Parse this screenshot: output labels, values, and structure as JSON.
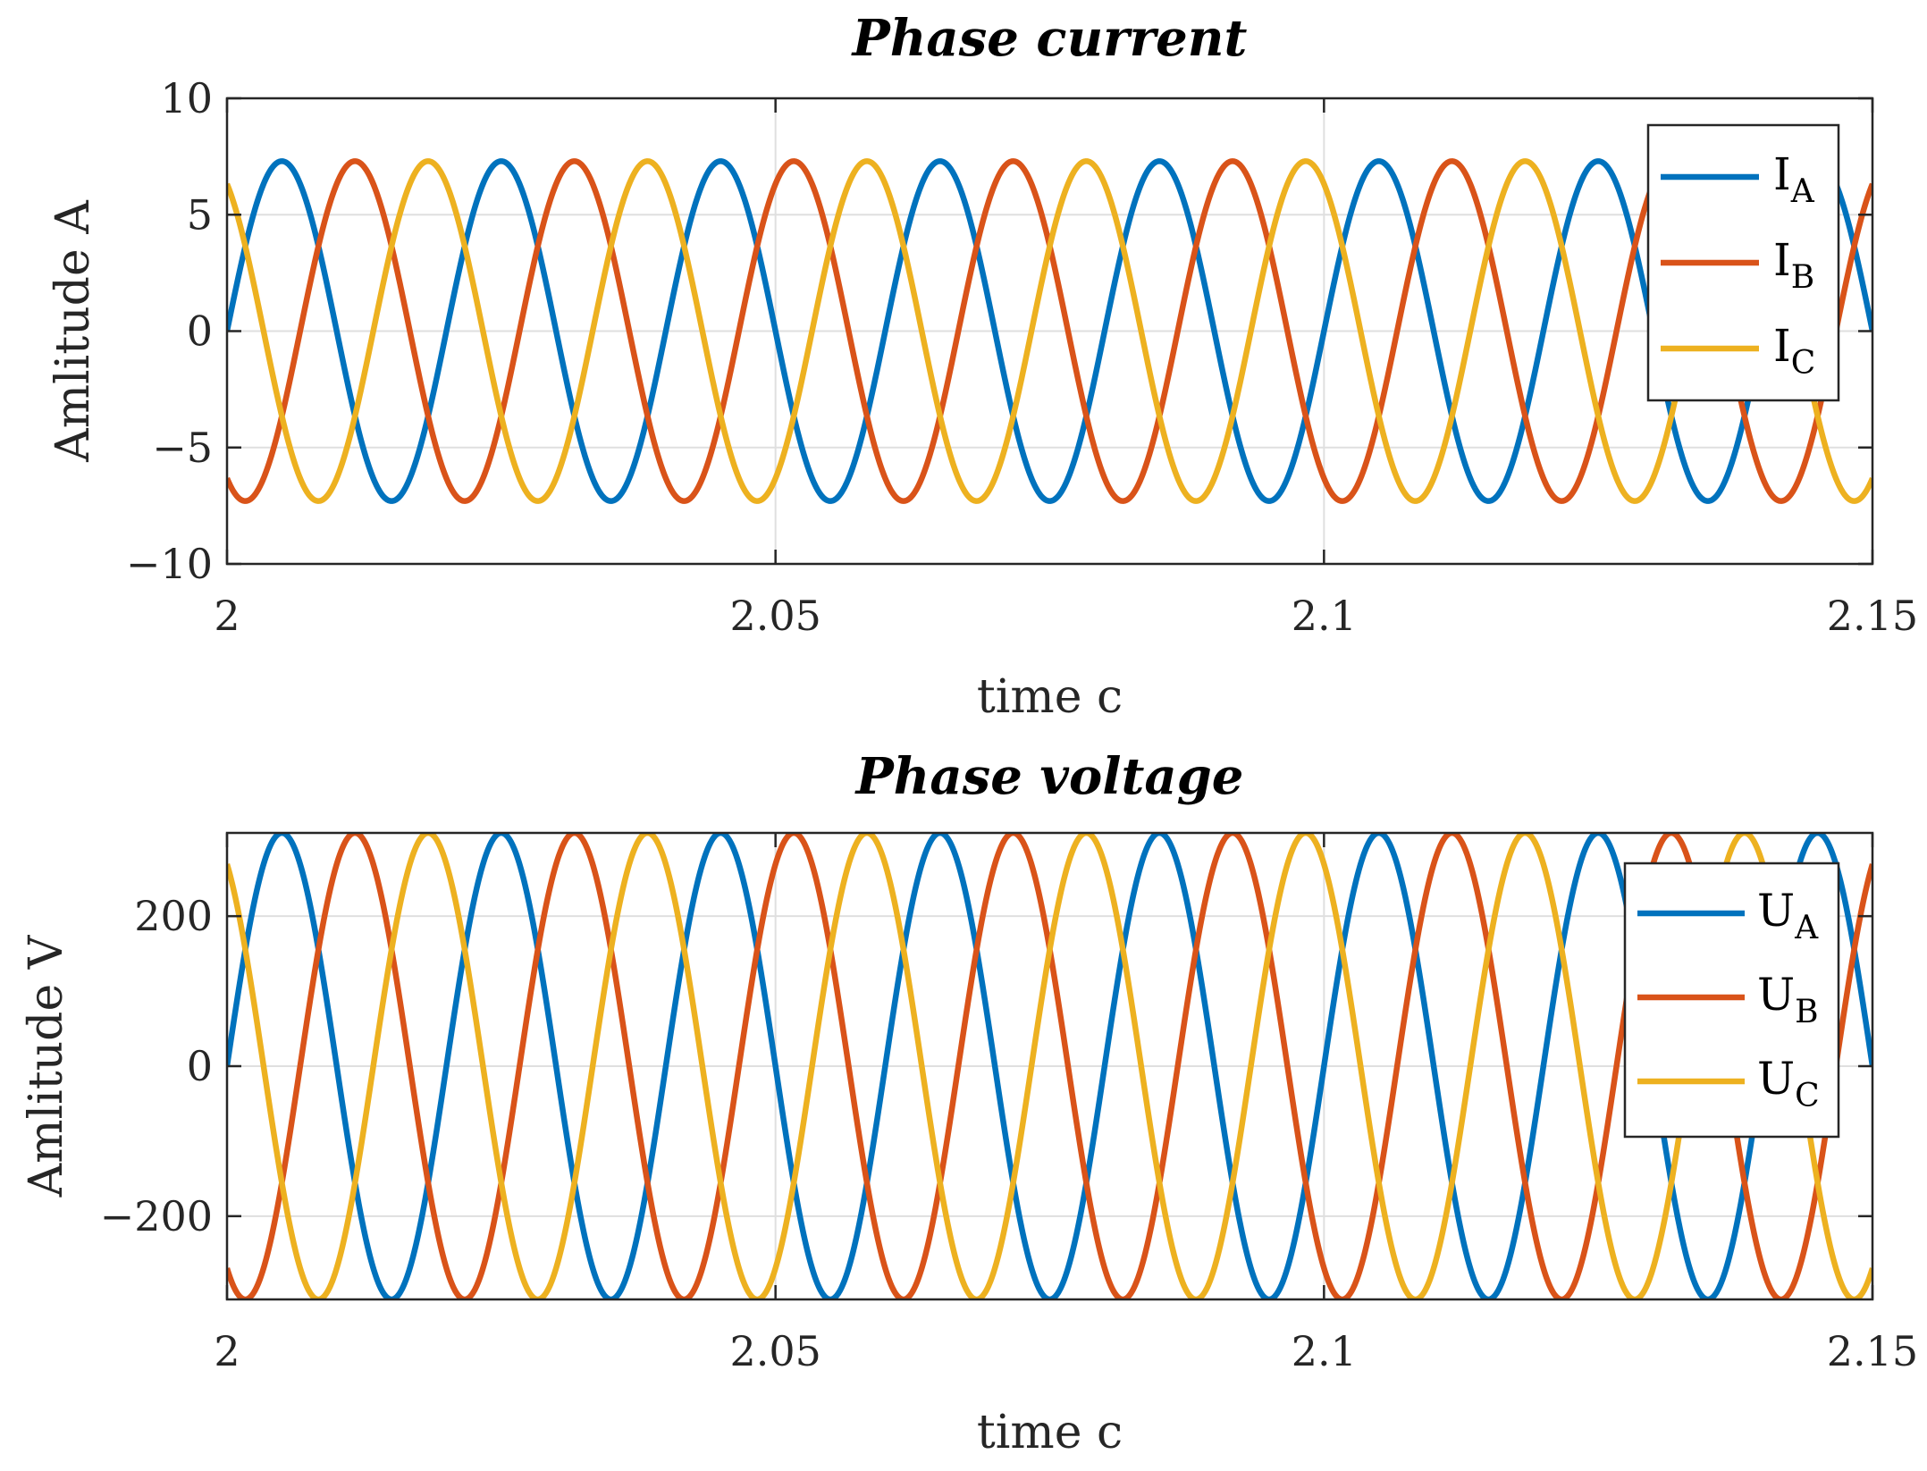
{
  "chart_data": [
    {
      "type": "line",
      "title": "Phase current",
      "xlabel": "time c",
      "ylabel": "Amlitude A",
      "xlim": [
        2,
        2.15
      ],
      "ylim": [
        -10,
        10
      ],
      "xticks": [
        2,
        2.05,
        2.1,
        2.15
      ],
      "xtick_labels": [
        "2",
        "2.05",
        "2.1",
        "2.15"
      ],
      "yticks": [
        -10,
        -5,
        0,
        5,
        10
      ],
      "ytick_labels": [
        "−10",
        "−5",
        "0",
        "5",
        "10"
      ],
      "grid": true,
      "legend_position": "top-right",
      "series": [
        {
          "name": "I",
          "subscript": "A",
          "color": "#0072BD",
          "amplitude": 7.3,
          "frequency_hz": 50,
          "phase_deg": 0
        },
        {
          "name": "I",
          "subscript": "B",
          "color": "#D95319",
          "amplitude": 7.3,
          "frequency_hz": 50,
          "phase_deg": -120
        },
        {
          "name": "I",
          "subscript": "C",
          "color": "#EDB120",
          "amplitude": 7.3,
          "frequency_hz": 50,
          "phase_deg": 120
        }
      ]
    },
    {
      "type": "line",
      "title": "Phase voltage",
      "xlabel": "time c",
      "ylabel": "Amlitude V",
      "xlim": [
        2,
        2.15
      ],
      "ylim": [
        -311,
        311
      ],
      "xticks": [
        2,
        2.05,
        2.1,
        2.15
      ],
      "xtick_labels": [
        "2",
        "2.05",
        "2.1",
        "2.15"
      ],
      "yticks": [
        -200,
        0,
        200
      ],
      "ytick_labels": [
        "−200",
        "0",
        "200"
      ],
      "grid": true,
      "legend_position": "top-right",
      "series": [
        {
          "name": "U",
          "subscript": "A",
          "color": "#0072BD",
          "amplitude": 311,
          "frequency_hz": 50,
          "phase_deg": 0
        },
        {
          "name": "U",
          "subscript": "B",
          "color": "#D95319",
          "amplitude": 311,
          "frequency_hz": 50,
          "phase_deg": -120
        },
        {
          "name": "U",
          "subscript": "C",
          "color": "#EDB120",
          "amplitude": 311,
          "frequency_hz": 50,
          "phase_deg": 120
        }
      ]
    }
  ]
}
